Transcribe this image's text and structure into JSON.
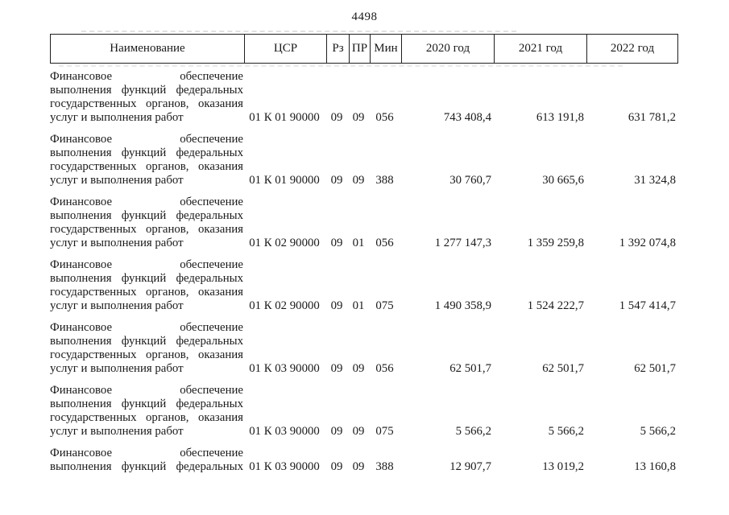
{
  "page_number": "4498",
  "colors": {
    "background": "#ffffff",
    "text": "#1a1a1a",
    "table_border": "#1f1f1f"
  },
  "table": {
    "headers": [
      "Наименование",
      "ЦСР",
      "Рз",
      "ПР",
      "Мин",
      "2020 год",
      "2021 год",
      "2022 год"
    ],
    "rows": [
      {
        "name_lines": [
          "Финансовое обеспечение",
          "выполнения функций федеральных",
          "государственных органов, оказания",
          "услуг и выполнения работ"
        ],
        "continues_next_page": false,
        "csr": "01 К 01 90000",
        "rz": "09",
        "pr": "09",
        "min": "056",
        "values": [
          "743 408,4",
          "613 191,8",
          "631 781,2"
        ]
      },
      {
        "name_lines": [
          "Финансовое обеспечение",
          "выполнения функций федеральных",
          "государственных органов, оказания",
          "услуг и выполнения работ"
        ],
        "continues_next_page": false,
        "csr": "01 К 01 90000",
        "rz": "09",
        "pr": "09",
        "min": "388",
        "values": [
          "30 760,7",
          "30 665,6",
          "31 324,8"
        ]
      },
      {
        "name_lines": [
          "Финансовое обеспечение",
          "выполнения функций федеральных",
          "государственных органов, оказания",
          "услуг и выполнения работ"
        ],
        "continues_next_page": false,
        "csr": "01 К 02 90000",
        "rz": "09",
        "pr": "01",
        "min": "056",
        "values": [
          "1 277 147,3",
          "1 359 259,8",
          "1 392 074,8"
        ]
      },
      {
        "name_lines": [
          "Финансовое обеспечение",
          "выполнения функций федеральных",
          "государственных органов, оказания",
          "услуг и выполнения работ"
        ],
        "continues_next_page": false,
        "csr": "01 К 02 90000",
        "rz": "09",
        "pr": "01",
        "min": "075",
        "values": [
          "1 490 358,9",
          "1 524 222,7",
          "1 547 414,7"
        ]
      },
      {
        "name_lines": [
          "Финансовое обеспечение",
          "выполнения функций федеральных",
          "государственных органов, оказания",
          "услуг и выполнения работ"
        ],
        "continues_next_page": false,
        "csr": "01 К 03 90000",
        "rz": "09",
        "pr": "09",
        "min": "056",
        "values": [
          "62 501,7",
          "62 501,7",
          "62 501,7"
        ]
      },
      {
        "name_lines": [
          "Финансовое обеспечение",
          "выполнения функций федеральных",
          "государственных органов, оказания",
          "услуг и выполнения работ"
        ],
        "continues_next_page": false,
        "csr": "01 К 03 90000",
        "rz": "09",
        "pr": "09",
        "min": "075",
        "values": [
          "5 566,2",
          "5 566,2",
          "5 566,2"
        ]
      },
      {
        "name_lines": [
          "Финансовое обеспечение",
          "выполнения функций федеральных"
        ],
        "continues_next_page": true,
        "csr": "01 К 03 90000",
        "rz": "09",
        "pr": "09",
        "min": "388",
        "values": [
          "12 907,7",
          "13 019,2",
          "13 160,8"
        ]
      }
    ]
  }
}
